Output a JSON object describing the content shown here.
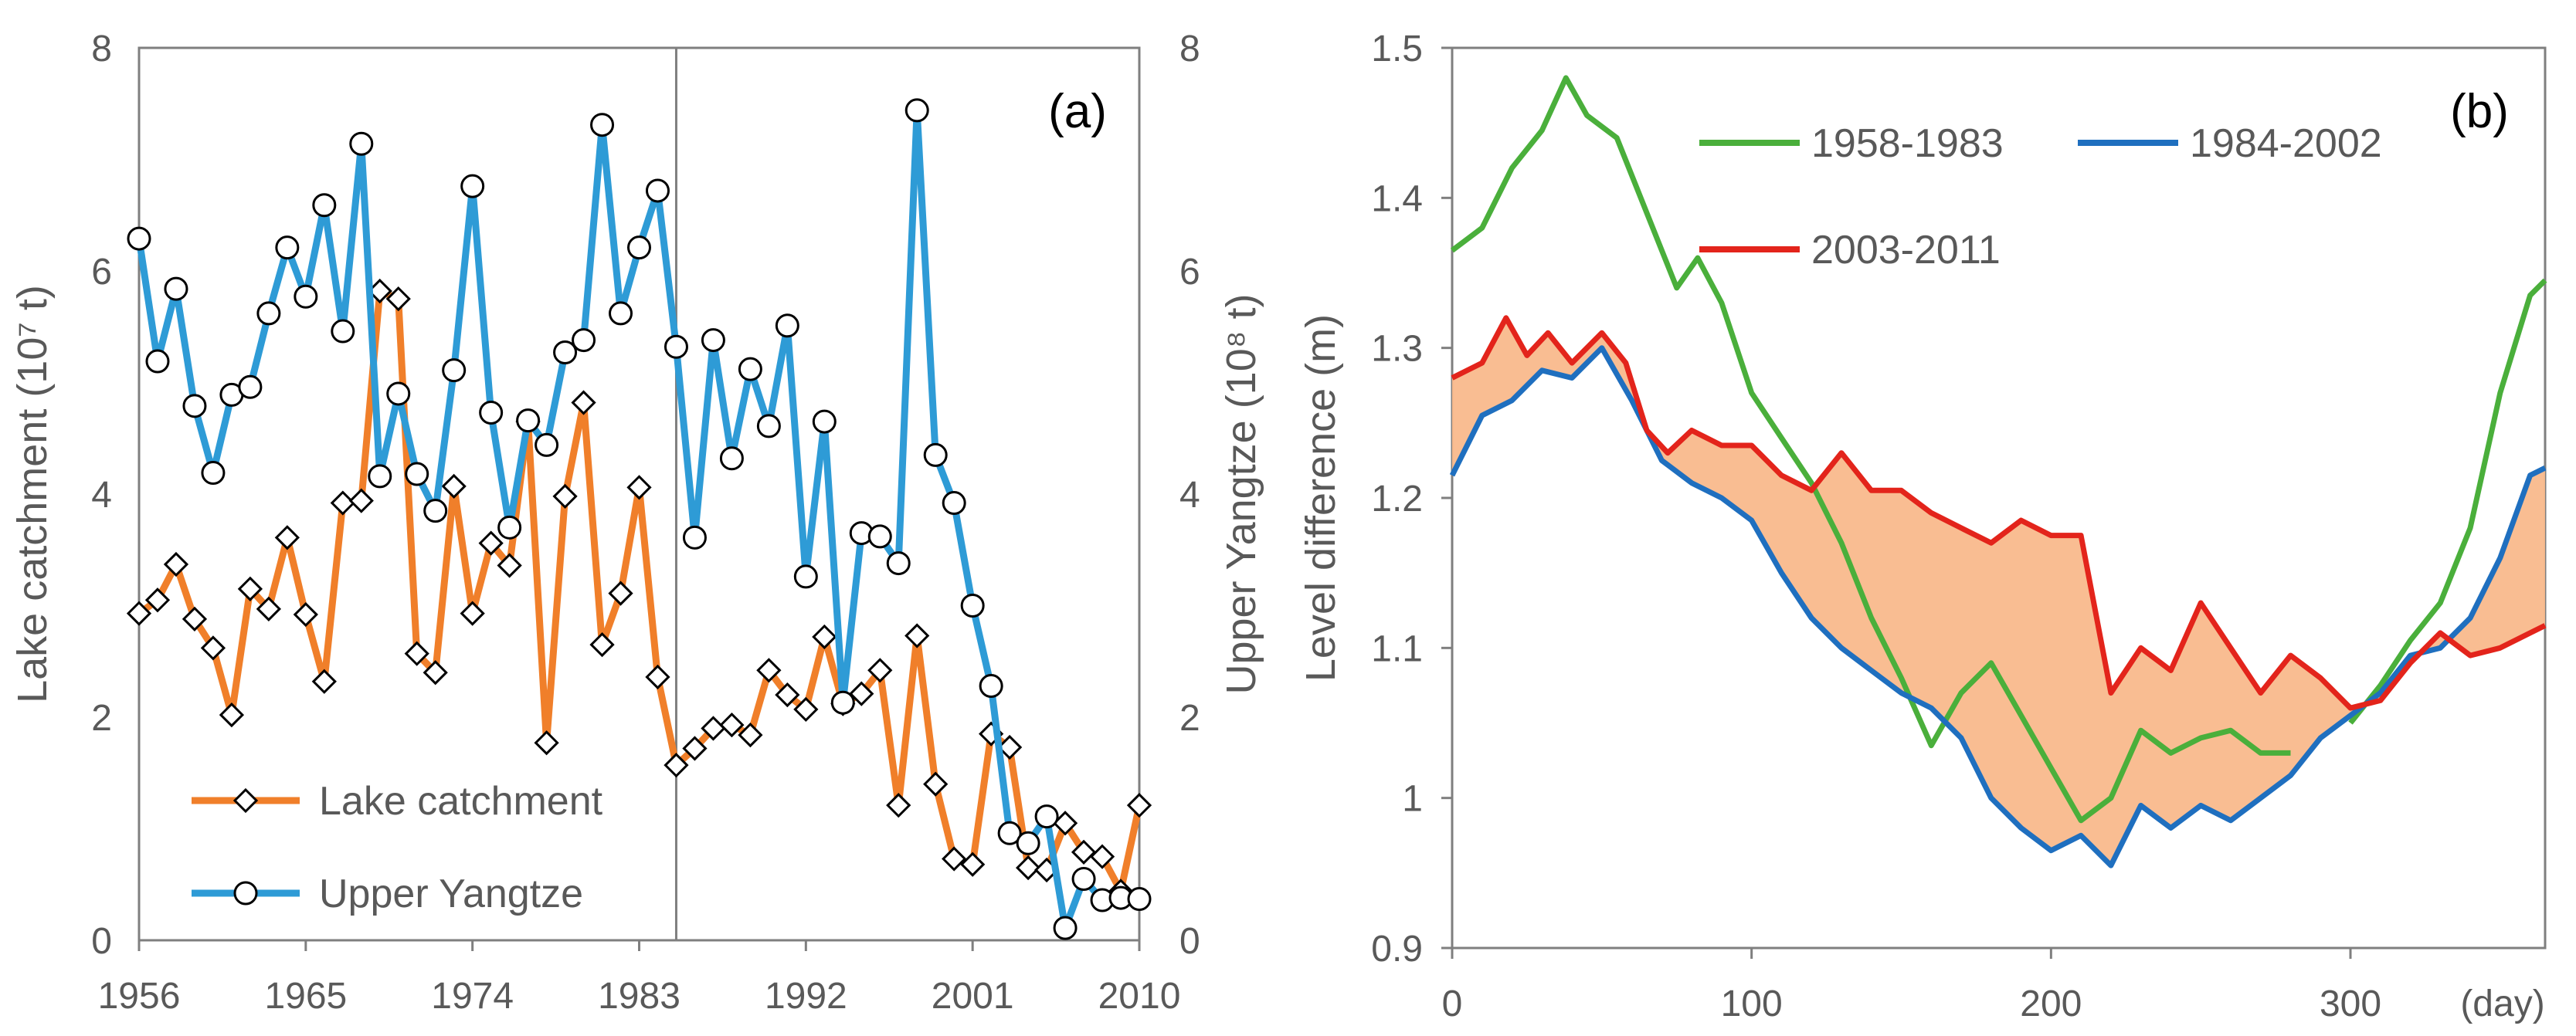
{
  "chart_data": [
    {
      "panel": "(a)",
      "type": "line",
      "ylabel_left": "Lake catchment (10⁷ t)",
      "ylabel_right": "Upper Yangtze (10⁸ t)",
      "xlim": [
        1956,
        2010
      ],
      "ylim_left": [
        0,
        8
      ],
      "ylim_right": [
        0,
        8
      ],
      "xticks": [
        "1956",
        "1965",
        "1974",
        "1983",
        "1992",
        "2001",
        "2010"
      ],
      "xtick_values": [
        1956,
        1965,
        1974,
        1983,
        1992,
        2001,
        2010
      ],
      "yticks_left": [
        "0",
        "2",
        "4",
        "6",
        "8"
      ],
      "yticks_right": [
        "0",
        "2",
        "4",
        "6",
        "8"
      ],
      "ytick_values": [
        0,
        2,
        4,
        6,
        8
      ],
      "vline_year": 1985,
      "legend_position": "bottom-left",
      "x": [
        1956,
        1957,
        1958,
        1959,
        1960,
        1961,
        1962,
        1963,
        1964,
        1965,
        1966,
        1967,
        1968,
        1969,
        1970,
        1971,
        1972,
        1973,
        1974,
        1975,
        1976,
        1977,
        1978,
        1979,
        1980,
        1981,
        1982,
        1983,
        1984,
        1985,
        1986,
        1987,
        1988,
        1989,
        1990,
        1991,
        1992,
        1993,
        1994,
        1995,
        1996,
        1997,
        1998,
        1999,
        2000,
        2001,
        2002,
        2003,
        2004,
        2005,
        2006,
        2007,
        2008,
        2009,
        2010
      ],
      "series": [
        {
          "name": "Lake catchment",
          "color": "#f07f2a",
          "marker": "diamond",
          "axis": "left",
          "values": [
            2.93,
            3.05,
            3.37,
            2.88,
            2.62,
            2.02,
            3.15,
            2.97,
            3.61,
            2.92,
            2.32,
            3.92,
            3.94,
            5.82,
            5.75,
            2.57,
            2.4,
            4.07,
            2.93,
            3.56,
            3.36,
            4.65,
            1.77,
            3.98,
            4.82,
            2.65,
            3.11,
            4.06,
            2.36,
            1.57,
            1.72,
            1.9,
            1.93,
            1.84,
            2.42,
            2.2,
            2.07,
            2.72,
            2.12,
            2.21,
            2.42,
            1.21,
            2.73,
            1.4,
            0.73,
            0.68,
            1.85,
            1.73,
            0.65,
            0.63,
            1.05,
            0.79,
            0.75,
            0.44,
            1.21
          ]
        },
        {
          "name": "Upper Yangtze",
          "color": "#2e9bd6",
          "marker": "circle",
          "axis": "right",
          "values": [
            6.29,
            5.19,
            5.84,
            4.79,
            4.19,
            4.89,
            4.96,
            5.62,
            6.21,
            5.77,
            6.59,
            5.46,
            7.14,
            4.16,
            4.9,
            4.18,
            3.85,
            5.11,
            6.76,
            4.73,
            3.7,
            4.66,
            4.44,
            5.27,
            5.38,
            7.31,
            5.62,
            6.21,
            6.72,
            5.32,
            3.61,
            5.38,
            4.32,
            5.12,
            4.61,
            5.51,
            3.26,
            4.65,
            2.13,
            3.65,
            3.62,
            3.38,
            7.44,
            4.35,
            3.92,
            3.0,
            2.28,
            0.96,
            0.87,
            1.11,
            0.11,
            0.55,
            0.36,
            0.38,
            0.37
          ]
        }
      ]
    },
    {
      "panel": "(b)",
      "type": "line",
      "ylabel": "Level difference (m)",
      "xlabel": "(day)",
      "xlim": [
        0,
        365
      ],
      "ylim": [
        0.9,
        1.5
      ],
      "xticks": [
        "0",
        "100",
        "200",
        "300"
      ],
      "xtick_values": [
        0,
        100,
        200,
        300
      ],
      "yticks": [
        "0.9",
        "1",
        "1.1",
        "1.2",
        "1.3",
        "1.4",
        "1.5"
      ],
      "ytick_values": [
        0.9,
        1.0,
        1.1,
        1.2,
        1.3,
        1.4,
        1.5
      ],
      "legend_position": "top",
      "shaded_area": {
        "between": [
          "1984-2002",
          "2003-2011"
        ],
        "color": "#f9b98c"
      },
      "series": [
        {
          "name": "1958-1983",
          "color": "#4aaf3b",
          "x": [
            0,
            10,
            20,
            30,
            38,
            45,
            55,
            65,
            75,
            82,
            90,
            100,
            110,
            120,
            130,
            140,
            150,
            160,
            170,
            180,
            190,
            200,
            210,
            220,
            230,
            240,
            250,
            260,
            270,
            280
          ],
          "values": [
            1.365,
            1.38,
            1.42,
            1.445,
            1.48,
            1.455,
            1.44,
            1.39,
            1.34,
            1.36,
            1.33,
            1.27,
            1.24,
            1.21,
            1.17,
            1.12,
            1.08,
            1.035,
            1.07,
            1.09,
            1.055,
            1.02,
            0.985,
            1.0,
            1.045,
            1.03,
            1.04,
            1.045,
            1.03,
            1.03
          ]
        },
        {
          "name": "1958-1983",
          "color": "#4aaf3b",
          "x": [
            300,
            310,
            320,
            330,
            340,
            350,
            360,
            365
          ],
          "values": [
            1.05,
            1.075,
            1.105,
            1.13,
            1.18,
            1.27,
            1.335,
            1.345
          ]
        },
        {
          "name": "1984-2002",
          "color": "#1f6fbf",
          "x": [
            0,
            10,
            20,
            30,
            40,
            50,
            60,
            70,
            80,
            90,
            100,
            110,
            120,
            130,
            140,
            150,
            160,
            170,
            180,
            190,
            200,
            210,
            220,
            230,
            240,
            250,
            260,
            270,
            280,
            290,
            300,
            310,
            320,
            330,
            340,
            350,
            360,
            365
          ],
          "values": [
            1.215,
            1.255,
            1.265,
            1.285,
            1.28,
            1.3,
            1.265,
            1.225,
            1.21,
            1.2,
            1.185,
            1.15,
            1.12,
            1.1,
            1.085,
            1.07,
            1.06,
            1.04,
            1.0,
            0.98,
            0.965,
            0.975,
            0.955,
            0.995,
            0.98,
            0.995,
            0.985,
            1.0,
            1.015,
            1.04,
            1.055,
            1.07,
            1.095,
            1.1,
            1.12,
            1.16,
            1.215,
            1.22
          ]
        },
        {
          "name": "2003-2011",
          "color": "#e3241b",
          "x": [
            0,
            10,
            18,
            25,
            32,
            40,
            50,
            58,
            65,
            72,
            80,
            90,
            100,
            110,
            120,
            130,
            140,
            150,
            160,
            170,
            180,
            190,
            200,
            210,
            220,
            230,
            240,
            250,
            260,
            270,
            280,
            290,
            300,
            310,
            320,
            330,
            340,
            350,
            360,
            365
          ],
          "values": [
            1.28,
            1.29,
            1.32,
            1.295,
            1.31,
            1.29,
            1.31,
            1.29,
            1.245,
            1.23,
            1.245,
            1.235,
            1.235,
            1.215,
            1.205,
            1.23,
            1.205,
            1.205,
            1.19,
            1.18,
            1.17,
            1.185,
            1.175,
            1.175,
            1.07,
            1.1,
            1.085,
            1.13,
            1.1,
            1.07,
            1.095,
            1.08,
            1.06,
            1.065,
            1.09,
            1.11,
            1.095,
            1.1,
            1.11,
            1.115
          ]
        }
      ]
    }
  ]
}
